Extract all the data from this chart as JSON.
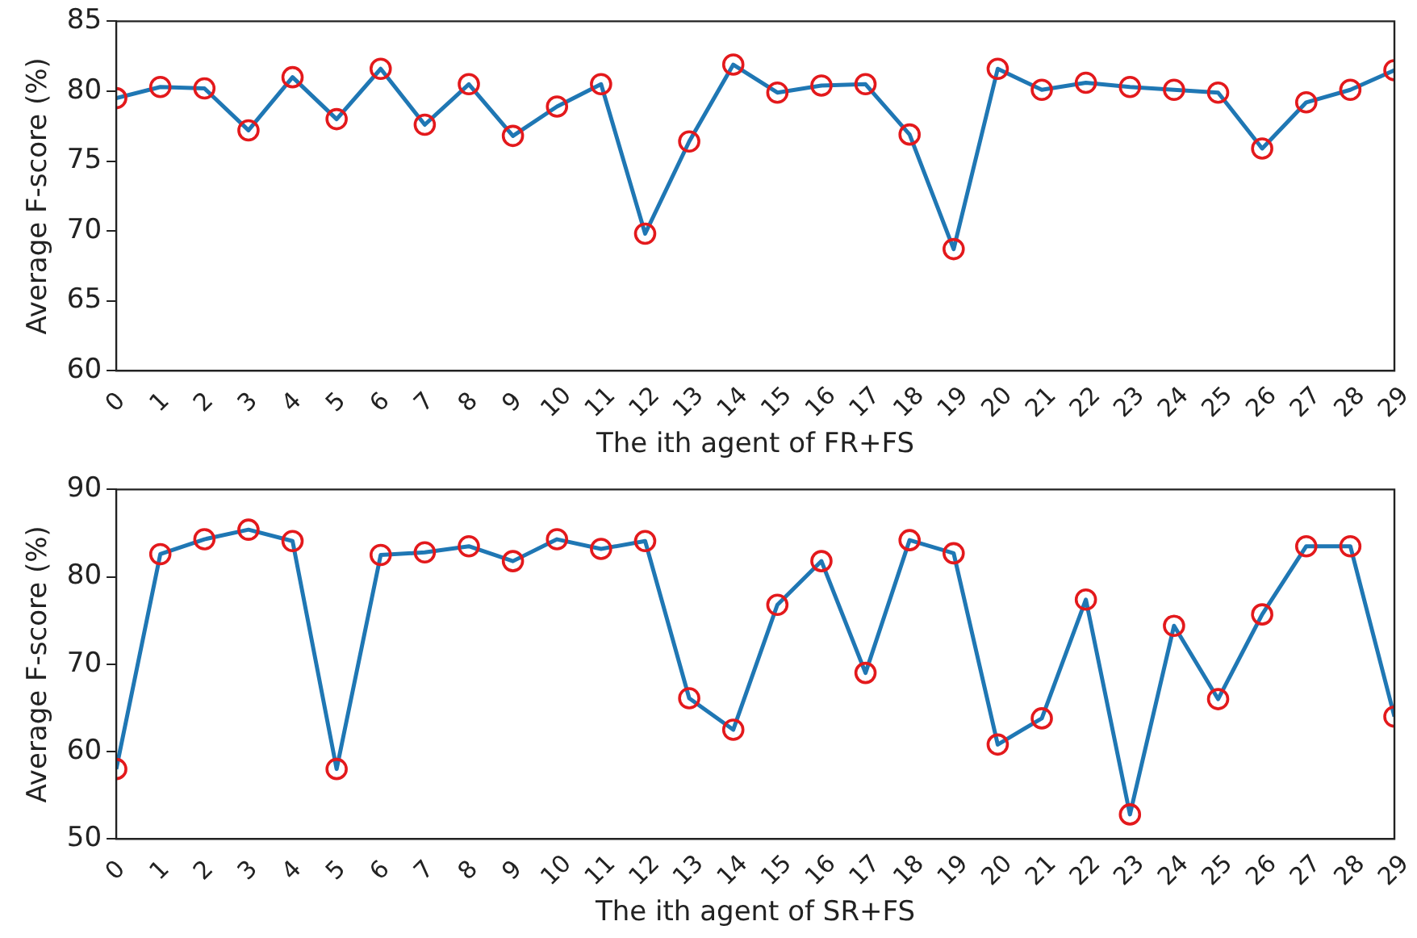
{
  "chart_data": [
    {
      "type": "line",
      "xlabel": "The ith agent of FR+FS",
      "ylabel": "Average F-score (%)",
      "x": [
        0,
        1,
        2,
        3,
        4,
        5,
        6,
        7,
        8,
        9,
        10,
        11,
        12,
        13,
        14,
        15,
        16,
        17,
        18,
        19,
        20,
        21,
        22,
        23,
        24,
        25,
        26,
        27,
        28,
        29
      ],
      "series": [
        {
          "color": "#1f77b4",
          "values": [
            79.5,
            80.3,
            80.2,
            77.2,
            81.0,
            78.0,
            81.6,
            77.6,
            80.5,
            76.8,
            78.9,
            80.5,
            69.8,
            76.4,
            81.9,
            79.9,
            80.4,
            80.5,
            76.9,
            68.7,
            81.6,
            80.1,
            80.6,
            80.3,
            80.1,
            79.9,
            75.9,
            79.2,
            80.1,
            81.5
          ]
        }
      ],
      "xlim": [
        0,
        29
      ],
      "xticks": [
        0,
        1,
        2,
        3,
        4,
        5,
        6,
        7,
        8,
        9,
        10,
        11,
        12,
        13,
        14,
        15,
        16,
        17,
        18,
        19,
        20,
        21,
        22,
        23,
        24,
        25,
        26,
        27,
        28,
        29
      ],
      "ylim": [
        60,
        85
      ],
      "yticks": [
        60,
        65,
        70,
        75,
        80,
        85
      ],
      "grid": false,
      "legend": false,
      "marker": "circle",
      "line_style": "solid"
    },
    {
      "type": "line",
      "xlabel": "The ith agent of SR+FS",
      "ylabel": "Average F-score (%)",
      "x": [
        0,
        1,
        2,
        3,
        4,
        5,
        6,
        7,
        8,
        9,
        10,
        11,
        12,
        13,
        14,
        15,
        16,
        17,
        18,
        19,
        20,
        21,
        22,
        23,
        24,
        25,
        26,
        27,
        28,
        29
      ],
      "series": [
        {
          "color": "#1f77b4",
          "values": [
            58.0,
            82.6,
            84.3,
            85.4,
            84.1,
            58.0,
            82.5,
            82.8,
            83.5,
            81.8,
            84.3,
            83.2,
            84.1,
            66.1,
            62.5,
            76.8,
            81.8,
            69.0,
            84.2,
            82.7,
            60.8,
            63.8,
            77.4,
            52.8,
            74.4,
            66.0,
            75.7,
            83.5,
            83.5,
            64.0
          ]
        }
      ],
      "xlim": [
        0,
        29
      ],
      "xticks": [
        0,
        1,
        2,
        3,
        4,
        5,
        6,
        7,
        8,
        9,
        10,
        11,
        12,
        13,
        14,
        15,
        16,
        17,
        18,
        19,
        20,
        21,
        22,
        23,
        24,
        25,
        26,
        27,
        28,
        29
      ],
      "ylim": [
        50,
        90
      ],
      "yticks": [
        50,
        60,
        70,
        80,
        90
      ],
      "grid": false,
      "legend": false,
      "marker": "circle",
      "line_style": "solid"
    }
  ]
}
